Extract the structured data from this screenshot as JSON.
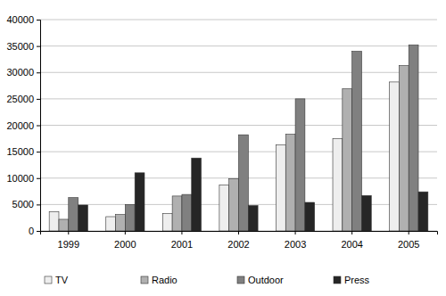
{
  "chart_data": {
    "type": "bar",
    "categories": [
      "1999",
      "2000",
      "2001",
      "2002",
      "2003",
      "2004",
      "2005"
    ],
    "series": [
      {
        "name": "TV",
        "color": "#eeeeee",
        "values": [
          3600,
          2700,
          3300,
          8700,
          16300,
          17500,
          28200
        ]
      },
      {
        "name": "Radio",
        "color": "#b0b0b0",
        "values": [
          2200,
          3100,
          6600,
          9900,
          18300,
          26900,
          31300
        ]
      },
      {
        "name": "Outdoor",
        "color": "#808080",
        "values": [
          6300,
          5000,
          6900,
          18200,
          25000,
          34000,
          35200
        ]
      },
      {
        "name": "Press",
        "color": "#262626",
        "values": [
          4900,
          11000,
          13800,
          4800,
          5400,
          6700,
          7400
        ]
      }
    ],
    "ylim": [
      0,
      40000
    ],
    "yticks": [
      0,
      5000,
      10000,
      15000,
      20000,
      25000,
      30000,
      35000,
      40000
    ],
    "grid": true,
    "legend": "bottom"
  }
}
